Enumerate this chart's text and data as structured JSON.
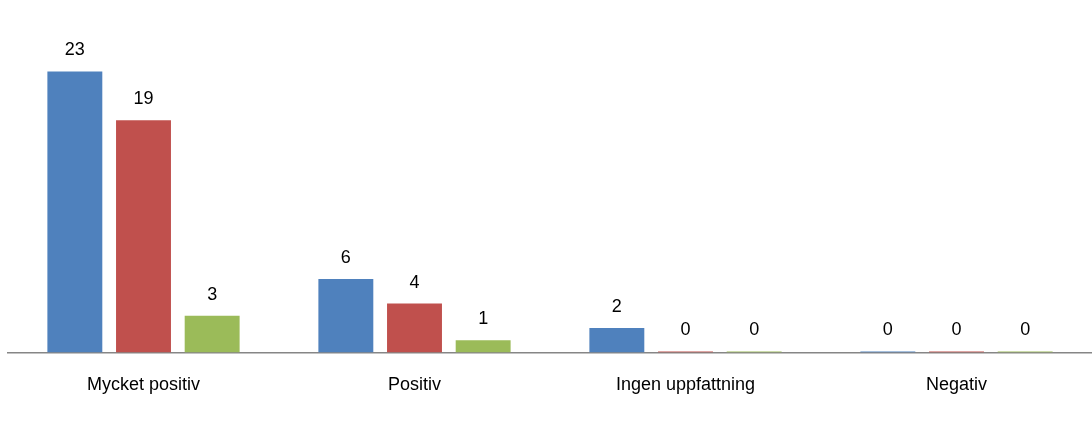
{
  "chart_data": {
    "type": "bar",
    "categories": [
      "Mycket positiv",
      "Positiv",
      "Ingen uppfattning",
      "Negativ"
    ],
    "series": [
      {
        "color": "#4f81bd",
        "values": [
          23,
          6,
          2,
          0
        ]
      },
      {
        "color": "#c0504d",
        "values": [
          19,
          4,
          0,
          0
        ]
      },
      {
        "color": "#9bbb59",
        "values": [
          3,
          1,
          0,
          0
        ]
      }
    ],
    "data_labels": true,
    "grid": false,
    "legend": false,
    "tick_labels": "x"
  }
}
